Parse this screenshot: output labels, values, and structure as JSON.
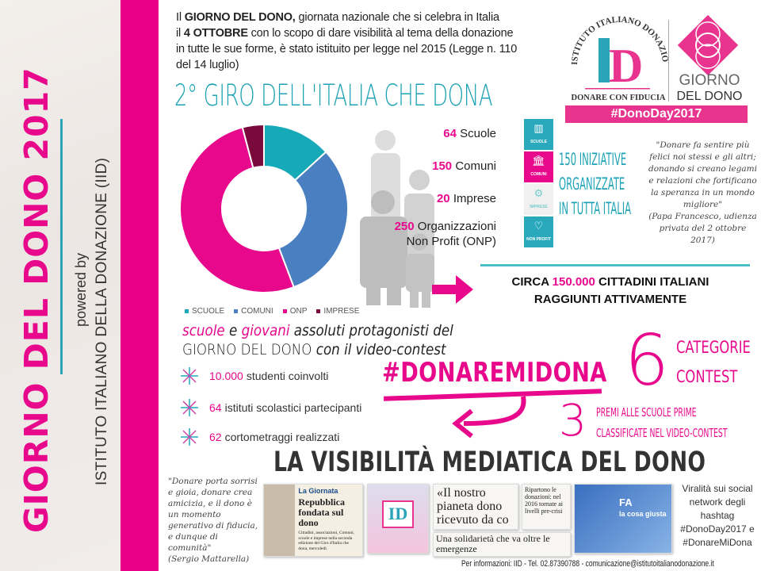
{
  "sidebar": {
    "title": "GIORNO DEL DONO 2017",
    "powered_by": "powered by",
    "org": "ISTITUTO ITALIANO DELLA DONAZIONE (IID)"
  },
  "intro": {
    "p1_pre": "Il ",
    "p1_bold": "GIORNO DEL DONO,",
    "p1_rest": " giornata nazionale che si celebra in Italia",
    "p2_pre": "il ",
    "p2_bold": "4 OTTOBRE",
    "p2_rest": " con lo scopo di dare visibilità al tema della donazione",
    "p3": "in tutte le sue forme, è stato istituito per legge nel 2015 (Legge n. 110",
    "p4": "del 14 luglio)"
  },
  "headline": "2° GIRO DELL'ITALIA CHE DONA",
  "logo": {
    "arc_text": "ISTITUTO ITALIANO DONAZIONE",
    "monogram": "ID",
    "tagline": "DONARE CON FIDUCIA",
    "gdd_line1": "GIORNO",
    "gdd_line2": "DEL DONO",
    "hashtag": "#DonoDay2017"
  },
  "chart_data": {
    "type": "pie",
    "donut": true,
    "categories": [
      "SCUOLE",
      "COMUNI",
      "ONP",
      "IMPRESE"
    ],
    "values": [
      64,
      150,
      250,
      20
    ],
    "colors": [
      "#16a9b8",
      "#4a7fc1",
      "#e8088c",
      "#7a0a3c"
    ],
    "legend_position": "bottom"
  },
  "stats": [
    {
      "num": "64",
      "label": "Scuole",
      "icon": "book-icon",
      "icon_caption": "SCUOLE",
      "color": "#2aa9bd"
    },
    {
      "num": "150",
      "label": "Comuni",
      "icon": "building-icon",
      "icon_caption": "COMUNI",
      "color": "#e8088c"
    },
    {
      "num": "20",
      "label": "Imprese",
      "icon": "gears-icon",
      "icon_caption": "IMPRESE",
      "color": "#f0f0f0"
    },
    {
      "num": "250",
      "label": "Organizzazioni",
      "label2": "Non Profit (ONP)",
      "icon": "heart-icon",
      "icon_caption": "NON PROFIT",
      "color": "#2aa9bd"
    }
  ],
  "iniziative": [
    "150 INIZIATIVE",
    "ORGANIZZATE",
    "IN TUTTA ITALIA"
  ],
  "papa_quote": {
    "text": "\"Donare fa sentire più felici noi stessi e gli altri; donando si creano legami e relazioni che fortificano la speranza in un mondo migliore\"",
    "source": "(Papa Francesco, udienza privata del 2 ottobre 2017)"
  },
  "cittadini": {
    "pre": "CIRCA ",
    "num": "150.000",
    "post": " CITTADINI ITALIANI",
    "line2": "RAGGIUNTI ATTIVAMENTE"
  },
  "protagonisti": {
    "w1": "scuole",
    "w2": " e ",
    "w3": "giovani",
    "w4": " assoluti protagonisti del",
    "line2a": "GIORNO DEL DONO",
    "line2b": " con il video-contest"
  },
  "bullets": [
    {
      "num": "10.000",
      "text": "studenti coinvolti"
    },
    {
      "num": "64",
      "text": "istituti scolastici partecipanti"
    },
    {
      "num": "62",
      "text": "cortometraggi realizzati"
    }
  ],
  "contest": {
    "hashtag": "#DONAREMIDONA",
    "six": "6",
    "six_label1": "CATEGORIE",
    "six_label2": "CONTEST",
    "three": "3",
    "three_label1": "PREMI ALLE SCUOLE PRIME",
    "three_label2": "CLASSIFICATE NEL VIDEO-CONTEST"
  },
  "media": {
    "title": "LA VISIBILITÀ MEDIATICA DEL DONO",
    "mattarella_quote": "\"Donare porta sorrisi e gioia, donare crea amicizia, e il dono è un momento generativo di fiducia, e dunque di comunità\"",
    "mattarella_source": "(Sergio Mattarella)",
    "clip1_kicker": "La Giornata",
    "clip1_headline": "Repubblica fondata sul dono",
    "clip1_body": "Cittadini, associazioni, Comuni, scuole e imprese nella seconda edizione del Giro d'Italia che dona, mercoledì.",
    "clip2_headline": "«Il nostro pianeta dono ricevuto da co",
    "clip3_headline": "Ripartono le donazioni: nel 2016 tornate ai livelli pre-crisi",
    "clip4_headline": "Una solidarietà che va oltre le emergenze",
    "tv_text1": "FA",
    "tv_text2": "la cosa giusta",
    "viral": "Viralità sui social network degli hashtag #DonoDay2017 e #DonareMiDona"
  },
  "footer": "Per informazioni: IID - Tel. 02.87390788 - comunicazione@istitutoitalianodonazione.it"
}
